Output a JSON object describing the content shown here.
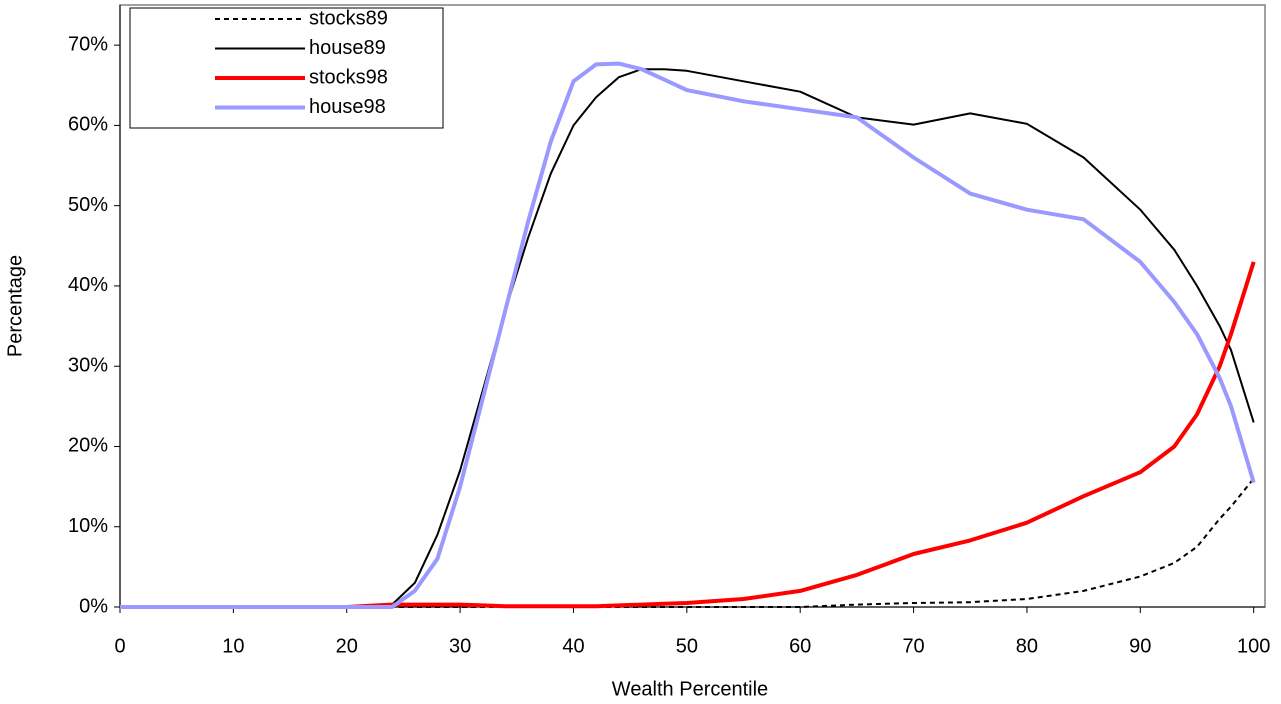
{
  "chart_data": {
    "type": "line",
    "x_label": "Wealth Percentile",
    "y_label": "Percentage",
    "x": [
      0,
      10,
      20,
      24,
      26,
      28,
      30,
      32,
      34,
      36,
      38,
      40,
      42,
      44,
      46,
      48,
      50,
      55,
      60,
      65,
      70,
      75,
      80,
      85,
      90,
      93,
      95,
      97,
      98,
      100
    ],
    "series": [
      {
        "name": "stocks89",
        "color": "#000000",
        "style": "dashed",
        "width": 2,
        "values": [
          0,
          0,
          0,
          0,
          0,
          0,
          0,
          0,
          0,
          0,
          0,
          0,
          0,
          0,
          0,
          0,
          0,
          0,
          0,
          0.3,
          0.5,
          0.6,
          1,
          2,
          3.8,
          5.5,
          7.5,
          11,
          12.5,
          16
        ]
      },
      {
        "name": "house89",
        "color": "#000000",
        "style": "solid",
        "width": 2,
        "values": [
          0,
          0,
          0,
          0.3,
          3,
          9,
          17,
          27,
          37,
          46,
          54,
          60,
          63.5,
          66,
          67,
          67,
          66.8,
          65.5,
          64.2,
          61,
          60.1,
          61.5,
          60.2,
          56,
          49.5,
          44.5,
          40,
          35,
          32,
          23
        ]
      },
      {
        "name": "stocks98",
        "color": "#ff0000",
        "style": "solid",
        "width": 4,
        "values": [
          0,
          0,
          0,
          0.3,
          0.3,
          0.3,
          0.3,
          0.2,
          0.1,
          0.1,
          0.1,
          0.1,
          0.1,
          0.2,
          0.3,
          0.4,
          0.5,
          1,
          2,
          4,
          6.6,
          8.3,
          10.5,
          13.8,
          16.8,
          20,
          24,
          30,
          34,
          43
        ]
      },
      {
        "name": "house98",
        "color": "#9999ff",
        "style": "solid",
        "width": 4,
        "values": [
          0,
          0,
          0,
          0,
          2,
          6,
          15,
          26,
          37,
          48,
          58,
          65.5,
          67.6,
          67.7,
          67,
          65.7,
          64.4,
          63,
          62,
          61,
          56,
          51.5,
          49.5,
          48.3,
          43,
          38,
          34,
          28.5,
          25,
          15.5
        ]
      }
    ],
    "xlim": [
      0,
      101
    ],
    "ylim": [
      0,
      75
    ],
    "xticks": [
      0,
      10,
      20,
      30,
      40,
      50,
      60,
      70,
      80,
      90,
      100
    ],
    "yticks": [
      {
        "value": 0,
        "label": "0%"
      },
      {
        "value": 10,
        "label": "10%"
      },
      {
        "value": 20,
        "label": "20%"
      },
      {
        "value": 30,
        "label": "30%"
      },
      {
        "value": 40,
        "label": "40%"
      },
      {
        "value": 50,
        "label": "50%"
      },
      {
        "value": 60,
        "label": "60%"
      },
      {
        "value": 70,
        "label": "70%"
      }
    ],
    "legend": "upper left",
    "grid": false
  }
}
